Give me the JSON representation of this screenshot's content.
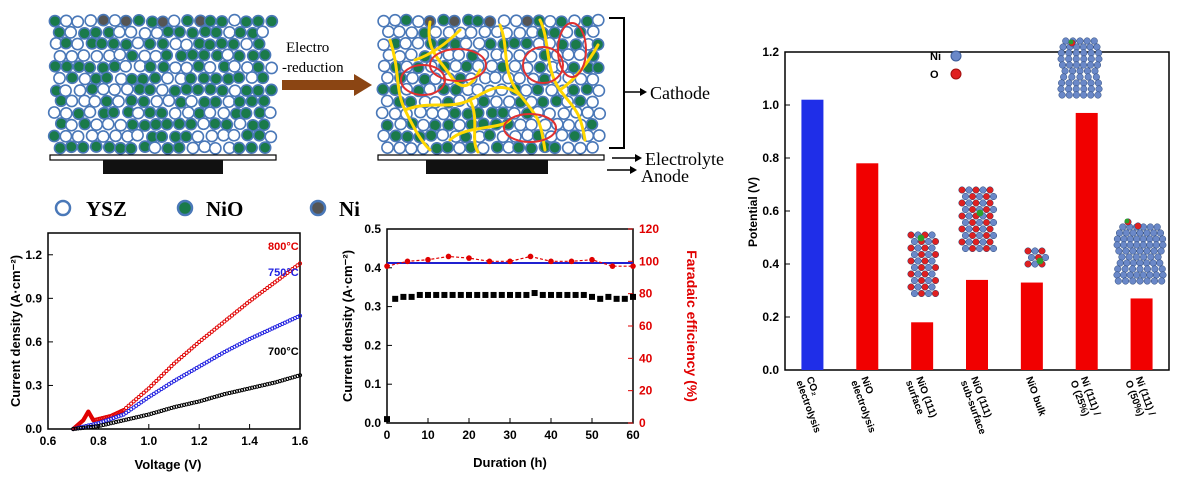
{
  "schematic": {
    "arrow_label_line1": "Electro",
    "arrow_label_line2": "-reduction",
    "cathode_label": "Cathode",
    "electrolyte_label": "Electrolyte",
    "anode_label": "Anode",
    "legend": [
      {
        "label": "YSZ",
        "color": "#ffffff"
      },
      {
        "label": "NiO",
        "color": "#1a7a4a"
      },
      {
        "label": "Ni",
        "color": "#555555"
      }
    ],
    "colors": {
      "particle_border": "#4a78b8",
      "network": "#ffd700",
      "cluster": "#e03030"
    }
  },
  "chart_data": [
    {
      "type": "scatter",
      "xlabel": "Voltage (V)",
      "ylabel": "Current density (A·cm⁻²)",
      "xlim": [
        0.6,
        1.6
      ],
      "ylim": [
        0.0,
        1.35
      ],
      "x_ticks": [
        "0.6",
        "0.8",
        "1.0",
        "1.2",
        "1.4",
        "1.6"
      ],
      "y_ticks": [
        "0.0",
        "0.3",
        "0.6",
        "0.9",
        "1.2"
      ],
      "series": [
        {
          "name": "800°C",
          "label_text": "800",
          "color": "#e00000",
          "points": [
            [
              0.7,
              0.0
            ],
            [
              0.74,
              0.06
            ],
            [
              0.76,
              0.12
            ],
            [
              0.78,
              0.06
            ],
            [
              0.85,
              0.09
            ],
            [
              0.9,
              0.13
            ],
            [
              1.0,
              0.28
            ],
            [
              1.1,
              0.45
            ],
            [
              1.2,
              0.6
            ],
            [
              1.3,
              0.74
            ],
            [
              1.4,
              0.88
            ],
            [
              1.5,
              1.01
            ],
            [
              1.6,
              1.14
            ]
          ]
        },
        {
          "name": "750°C",
          "label_text": "750",
          "color": "#2020e0",
          "points": [
            [
              0.7,
              0.0
            ],
            [
              0.8,
              0.04
            ],
            [
              0.9,
              0.1
            ],
            [
              1.0,
              0.22
            ],
            [
              1.1,
              0.33
            ],
            [
              1.2,
              0.43
            ],
            [
              1.3,
              0.53
            ],
            [
              1.4,
              0.62
            ],
            [
              1.5,
              0.7
            ],
            [
              1.6,
              0.78
            ]
          ]
        },
        {
          "name": "700°C",
          "label_text": "700",
          "color": "#000000",
          "points": [
            [
              0.7,
              0.0
            ],
            [
              0.8,
              0.02
            ],
            [
              0.9,
              0.06
            ],
            [
              1.0,
              0.1
            ],
            [
              1.1,
              0.15
            ],
            [
              1.2,
              0.19
            ],
            [
              1.3,
              0.24
            ],
            [
              1.4,
              0.28
            ],
            [
              1.5,
              0.32
            ],
            [
              1.6,
              0.37
            ]
          ]
        }
      ]
    },
    {
      "type": "scatter",
      "xlabel": "Duration (h)",
      "ylabel": "Current density (A·cm⁻²)",
      "ylabel_right": "Faradaic efficiency (%)",
      "xlim": [
        0,
        60
      ],
      "ylim": [
        0.0,
        0.5
      ],
      "ylim_right": [
        0,
        120
      ],
      "x_ticks": [
        "0",
        "10",
        "20",
        "30",
        "40",
        "50",
        "60"
      ],
      "y_ticks": [
        "0.0",
        "0.1",
        "0.2",
        "0.3",
        "0.4",
        "0.5"
      ],
      "y_ticks_right": [
        "0",
        "20",
        "40",
        "60",
        "80",
        "100",
        "120"
      ],
      "series": [
        {
          "name": "Current density",
          "axis": "left",
          "color": "#000000",
          "x": [
            0,
            2,
            4,
            6,
            8,
            10,
            12,
            14,
            16,
            18,
            20,
            22,
            24,
            26,
            28,
            30,
            32,
            34,
            36,
            38,
            40,
            42,
            44,
            46,
            48,
            50,
            52,
            54,
            56,
            58,
            60
          ],
          "y": [
            0.01,
            0.32,
            0.325,
            0.325,
            0.33,
            0.33,
            0.33,
            0.33,
            0.33,
            0.33,
            0.33,
            0.33,
            0.33,
            0.33,
            0.33,
            0.33,
            0.33,
            0.33,
            0.335,
            0.33,
            0.33,
            0.33,
            0.33,
            0.33,
            0.33,
            0.325,
            0.32,
            0.325,
            0.32,
            0.32,
            0.325
          ]
        },
        {
          "name": "Faradaic efficiency",
          "axis": "right",
          "color": "#e00000",
          "x": [
            0,
            5,
            10,
            15,
            20,
            25,
            30,
            35,
            40,
            45,
            50,
            55,
            60
          ],
          "y": [
            97,
            100,
            101,
            103,
            102,
            100,
            100,
            103,
            100,
            100,
            101,
            97,
            97
          ]
        },
        {
          "name": "Reference",
          "axis": "right",
          "color": "#2020d0",
          "x": [
            0,
            60
          ],
          "y": [
            99,
            99
          ]
        }
      ]
    },
    {
      "type": "bar",
      "ylabel": "Potential (V)",
      "ylim": [
        0.0,
        1.2
      ],
      "y_ticks": [
        "0.0",
        "0.2",
        "0.4",
        "0.6",
        "0.8",
        "1.0",
        "1.2"
      ],
      "categories": [
        [
          "CO₂",
          "electrolysis"
        ],
        [
          "NiO",
          "electrolysis"
        ],
        [
          "NiO (111)",
          "surface"
        ],
        [
          "NiO (111)",
          "sub-surface"
        ],
        [
          "NiO bulk"
        ],
        [
          "Ni (111) /",
          "O (25%)"
        ],
        [
          "Ni (111) /",
          "O (50%)"
        ]
      ],
      "values": [
        1.02,
        0.78,
        0.18,
        0.34,
        0.33,
        0.97,
        0.27
      ],
      "colors": [
        "#1f2ee8",
        "#f10000",
        "#f10000",
        "#f10000",
        "#f10000",
        "#f10000",
        "#f10000"
      ],
      "legend": [
        {
          "label": "Ni",
          "color": "#6a88c8"
        },
        {
          "label": "O",
          "color": "#e02020"
        }
      ]
    }
  ]
}
